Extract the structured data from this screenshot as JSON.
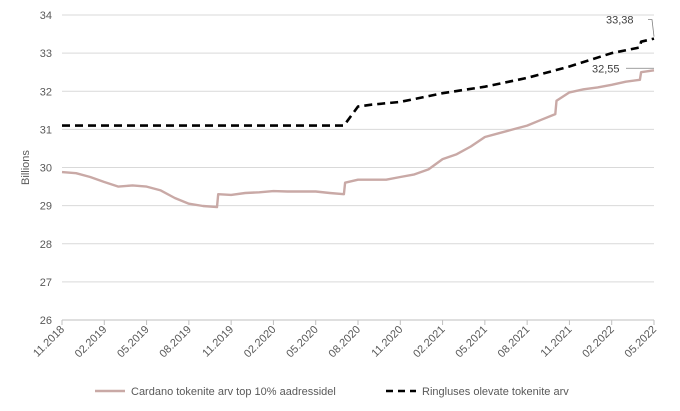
{
  "chart_data": {
    "type": "line",
    "ylabel": "Billions",
    "ylim": [
      26,
      34
    ],
    "yticks": [
      "26",
      "27",
      "28",
      "29",
      "30",
      "31",
      "32",
      "33",
      "34"
    ],
    "xticks": [
      "11.2018",
      "02.2019",
      "05.2019",
      "08.2019",
      "11.2019",
      "02.2020",
      "05.2020",
      "08.2020",
      "11.2020",
      "02.2021",
      "05.2021",
      "08.2021",
      "11.2021",
      "02.2022",
      "05.2022"
    ],
    "grid": "horizontal",
    "legend_position": "bottom",
    "series": [
      {
        "name": "Cardano tokenite arv top 10% aadressidel",
        "color": "#c9a9a6",
        "style": "solid",
        "x": [
          "2018-11",
          "2018-12",
          "2019-01",
          "2019-02",
          "2019-03",
          "2019-04",
          "2019-05",
          "2019-06",
          "2019-07",
          "2019-08",
          "2019-09",
          "2019-10",
          "2019-10",
          "2019-11",
          "2019-12",
          "2020-01",
          "2020-02",
          "2020-03",
          "2020-04",
          "2020-05",
          "2020-06",
          "2020-07",
          "2020-07",
          "2020-08",
          "2020-09",
          "2020-10",
          "2020-11",
          "2020-12",
          "2021-01",
          "2021-02",
          "2021-03",
          "2021-04",
          "2021-05",
          "2021-06",
          "2021-07",
          "2021-08",
          "2021-09",
          "2021-10",
          "2021-10",
          "2021-11",
          "2021-12",
          "2022-01",
          "2022-02",
          "2022-03",
          "2022-04",
          "2022-04",
          "2022-05"
        ],
        "y": [
          29.88,
          29.85,
          29.75,
          29.62,
          29.5,
          29.53,
          29.5,
          29.4,
          29.2,
          29.05,
          28.99,
          28.96,
          29.3,
          29.28,
          29.33,
          29.35,
          29.38,
          29.37,
          29.37,
          29.37,
          29.33,
          29.3,
          29.6,
          29.68,
          29.68,
          29.68,
          29.75,
          29.82,
          29.95,
          30.22,
          30.35,
          30.55,
          30.8,
          30.9,
          31.0,
          31.1,
          31.25,
          31.4,
          31.75,
          31.97,
          32.05,
          32.1,
          32.17,
          32.25,
          32.3,
          32.5,
          32.55
        ]
      },
      {
        "name": "Ringluses olevate tokenite arv",
        "color": "#000000",
        "style": "dashed",
        "x": [
          "2018-11",
          "2019-02",
          "2019-05",
          "2019-08",
          "2019-11",
          "2020-02",
          "2020-05",
          "2020-07",
          "2020-08",
          "2020-09",
          "2020-11",
          "2021-02",
          "2021-05",
          "2021-08",
          "2021-11",
          "2022-02",
          "2022-04",
          "2022-04",
          "2022-05"
        ],
        "y": [
          31.1,
          31.1,
          31.1,
          31.1,
          31.1,
          31.1,
          31.1,
          31.1,
          31.6,
          31.65,
          31.72,
          31.95,
          32.12,
          32.35,
          32.65,
          33.0,
          33.15,
          33.3,
          33.38
        ]
      }
    ],
    "annotations": [
      {
        "text": "33,38",
        "series": 1
      },
      {
        "text": "32,55",
        "series": 0
      }
    ]
  }
}
